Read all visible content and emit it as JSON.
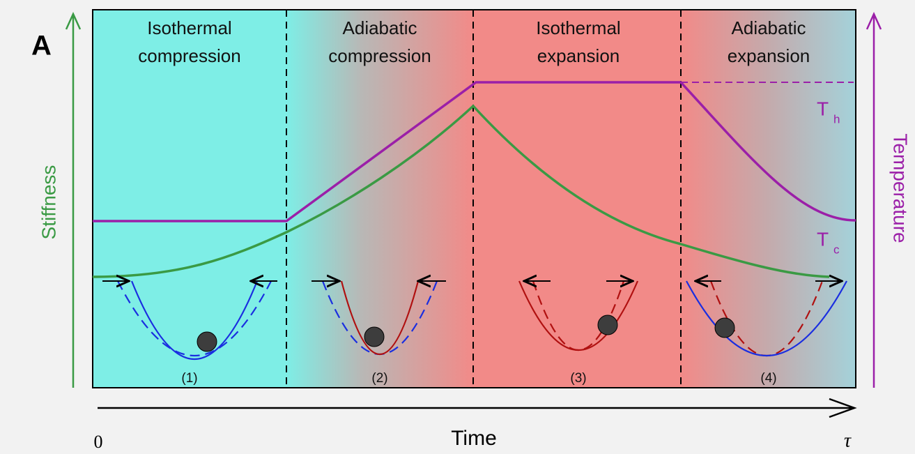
{
  "panel_label": "A",
  "phases": [
    {
      "line1": "Isothermal",
      "line2": "compression",
      "stage": "(1)"
    },
    {
      "line1": "Adiabatic",
      "line2": "compression",
      "stage": "(2)"
    },
    {
      "line1": "Isothermal",
      "line2": "expansion",
      "stage": "(3)"
    },
    {
      "line1": "Adiabatic",
      "line2": "expansion",
      "stage": "(4)"
    }
  ],
  "axes": {
    "left": "Stiffness",
    "right": "Temperature",
    "bottom": "Time",
    "start": "0",
    "end": "τ"
  },
  "temperature_labels": {
    "hot": {
      "symbol": "T",
      "subscript": "h"
    },
    "cold": {
      "symbol": "T",
      "subscript": "c"
    }
  }
}
